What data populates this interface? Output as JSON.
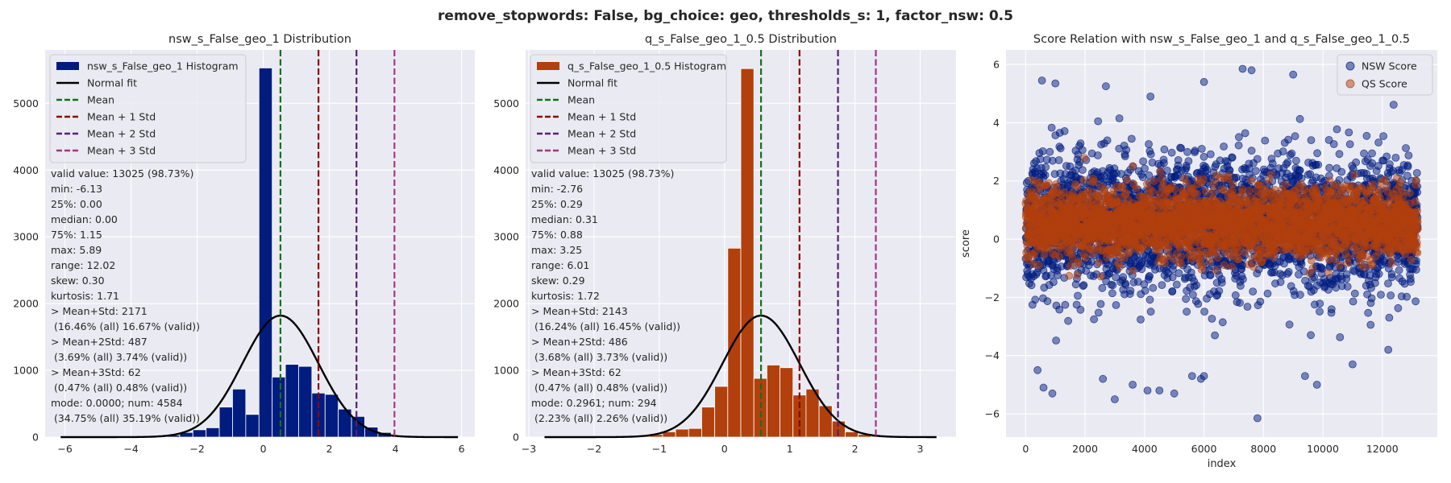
{
  "suptitle": "remove_stopwords: False, bg_choice: geo, thresholds_s: 1, factor_nsw: 0.5",
  "colors": {
    "nsw": "#001c7f",
    "qs": "#b1400d",
    "normal_fit": "#000000",
    "mean": "#12711c",
    "mean_1std": "#8c0800",
    "mean_2std": "#591e71",
    "mean_3std": "#a23582",
    "panel_bg": "#eaeaf2",
    "grid": "#ffffff"
  },
  "chart_data": [
    {
      "type": "bar",
      "subtype": "histogram",
      "title": "nsw_s_False_geo_1 Distribution",
      "xlabel": "",
      "ylabel": "",
      "xlim": [
        -6.6,
        6.4
      ],
      "ylim": [
        0,
        5800
      ],
      "xticks": [
        -6,
        -4,
        -2,
        0,
        2,
        4,
        6
      ],
      "yticks": [
        0,
        1000,
        2000,
        3000,
        4000,
        5000
      ],
      "bin_edges": [
        -6.13,
        -5.73,
        -5.33,
        -4.93,
        -4.53,
        -4.13,
        -3.73,
        -3.33,
        -2.93,
        -2.53,
        -2.13,
        -1.73,
        -1.33,
        -0.93,
        -0.53,
        -0.13,
        0.27,
        0.67,
        1.07,
        1.47,
        1.87,
        2.27,
        2.67,
        3.07,
        3.47,
        3.87,
        4.27,
        4.67,
        5.07,
        5.47,
        5.89
      ],
      "counts": [
        2,
        2,
        3,
        4,
        6,
        8,
        10,
        15,
        30,
        70,
        110,
        140,
        450,
        720,
        340,
        5530,
        900,
        1090,
        1060,
        660,
        640,
        420,
        310,
        150,
        70,
        30,
        12,
        6,
        3,
        2
      ],
      "normal_fit": {
        "mean": 0.52,
        "std": 1.15,
        "peak": 1820
      },
      "vlines": [
        {
          "label": "Mean",
          "x": 0.52,
          "color_key": "mean"
        },
        {
          "label": "Mean + 1 Std",
          "x": 1.67,
          "color_key": "mean_1std"
        },
        {
          "label": "Mean + 2 Std",
          "x": 2.82,
          "color_key": "mean_2std"
        },
        {
          "label": "Mean + 3 Std",
          "x": 3.97,
          "color_key": "mean_3std"
        }
      ],
      "legend": {
        "position": "upper left",
        "entries": [
          {
            "kind": "patch",
            "label": "nsw_s_False_geo_1 Histogram",
            "color_key": "nsw"
          },
          {
            "kind": "line",
            "label": "Normal fit",
            "color_key": "normal_fit"
          },
          {
            "kind": "dash",
            "label": "Mean",
            "color_key": "mean"
          },
          {
            "kind": "dash",
            "label": "Mean + 1 Std",
            "color_key": "mean_1std"
          },
          {
            "kind": "dash",
            "label": "Mean + 2 Std",
            "color_key": "mean_2std"
          },
          {
            "kind": "dash",
            "label": "Mean + 3 Std",
            "color_key": "mean_3std"
          }
        ]
      },
      "stats_text": [
        "valid value: 13025 (98.73%)",
        "min: -6.13",
        "25%: 0.00",
        "median: 0.00",
        "75%: 1.15",
        "max: 5.89",
        "range: 12.02",
        "skew: 0.30",
        "kurtosis: 1.71",
        "> Mean+Std: 2171",
        " (16.46% (all) 16.67% (valid))",
        "> Mean+2Std: 487",
        " (3.69% (all) 3.74% (valid))",
        "> Mean+3Std: 62",
        " (0.47% (all) 0.48% (valid))",
        "mode: 0.0000; num: 4584",
        " (34.75% (all) 35.19% (valid))"
      ]
    },
    {
      "type": "bar",
      "subtype": "histogram",
      "title": "q_s_False_geo_1_0.5 Distribution",
      "xlabel": "",
      "ylabel": "",
      "xlim": [
        -3.05,
        3.55
      ],
      "ylim": [
        0,
        5800
      ],
      "xticks": [
        -3,
        -2,
        -1,
        0,
        1,
        2,
        3
      ],
      "yticks": [
        0,
        1000,
        2000,
        3000,
        4000,
        5000
      ],
      "bin_edges": [
        -2.76,
        -2.56,
        -2.36,
        -2.16,
        -1.96,
        -1.75,
        -1.55,
        -1.35,
        -1.15,
        -0.95,
        -0.75,
        -0.55,
        -0.35,
        -0.15,
        0.05,
        0.25,
        0.45,
        0.65,
        0.85,
        1.05,
        1.25,
        1.45,
        1.65,
        1.85,
        2.05,
        2.25,
        2.45,
        2.65,
        2.85,
        3.05,
        3.25
      ],
      "counts": [
        2,
        2,
        3,
        4,
        6,
        8,
        12,
        18,
        40,
        80,
        120,
        130,
        450,
        760,
        2830,
        5520,
        880,
        1080,
        1040,
        630,
        720,
        470,
        240,
        80,
        40,
        15,
        8,
        4,
        2,
        2
      ],
      "normal_fit": {
        "mean": 0.56,
        "std": 0.59,
        "peak": 1820
      },
      "vlines": [
        {
          "label": "Mean",
          "x": 0.56,
          "color_key": "mean"
        },
        {
          "label": "Mean + 1 Std",
          "x": 1.15,
          "color_key": "mean_1std"
        },
        {
          "label": "Mean + 2 Std",
          "x": 1.74,
          "color_key": "mean_2std"
        },
        {
          "label": "Mean + 3 Std",
          "x": 2.32,
          "color_key": "mean_3std"
        }
      ],
      "legend": {
        "position": "upper left",
        "entries": [
          {
            "kind": "patch",
            "label": "q_s_False_geo_1_0.5 Histogram",
            "color_key": "qs"
          },
          {
            "kind": "line",
            "label": "Normal fit",
            "color_key": "normal_fit"
          },
          {
            "kind": "dash",
            "label": "Mean",
            "color_key": "mean"
          },
          {
            "kind": "dash",
            "label": "Mean + 1 Std",
            "color_key": "mean_1std"
          },
          {
            "kind": "dash",
            "label": "Mean + 2 Std",
            "color_key": "mean_2std"
          },
          {
            "kind": "dash",
            "label": "Mean + 3 Std",
            "color_key": "mean_3std"
          }
        ]
      },
      "stats_text": [
        "valid value: 13025 (98.73%)",
        "min: -2.76",
        "25%: 0.29",
        "median: 0.31",
        "75%: 0.88",
        "max: 3.25",
        "range: 6.01",
        "skew: 0.29",
        "kurtosis: 1.72",
        "> Mean+Std: 2143",
        " (16.24% (all) 16.45% (valid))",
        "> Mean+2Std: 486",
        " (3.68% (all) 3.73% (valid))",
        "> Mean+3Std: 62",
        " (0.47% (all) 0.48% (valid))",
        "mode: 0.2961; num: 294",
        " (2.23% (all) 2.26% (valid))"
      ]
    },
    {
      "type": "scatter",
      "title": "Score Relation with nsw_s_False_geo_1 and q_s_False_geo_1_0.5",
      "xlabel": "index",
      "ylabel": "score",
      "xlim": [
        -660,
        13850
      ],
      "ylim": [
        -6.8,
        6.5
      ],
      "xticks": [
        0,
        2000,
        4000,
        6000,
        8000,
        10000,
        12000
      ],
      "yticks": [
        -6,
        -4,
        -2,
        0,
        2,
        4,
        6
      ],
      "n_points": 13192,
      "series": [
        {
          "name": "NSW Score",
          "color_key": "nsw",
          "mean": 0.52,
          "std": 1.15,
          "outliers": [
            [
              550,
              5.45
            ],
            [
              1000,
              5.35
            ],
            [
              2700,
              5.25
            ],
            [
              6000,
              5.4
            ],
            [
              7300,
              5.85
            ],
            [
              7600,
              5.8
            ],
            [
              9000,
              5.65
            ],
            [
              4200,
              4.9
            ],
            [
              400,
              -4.5
            ],
            [
              600,
              -5.1
            ],
            [
              900,
              -5.3
            ],
            [
              2600,
              -4.8
            ],
            [
              3000,
              -5.5
            ],
            [
              3600,
              -5.0
            ],
            [
              4100,
              -5.2
            ],
            [
              4500,
              -5.2
            ],
            [
              5000,
              -5.3
            ],
            [
              5600,
              -4.7
            ],
            [
              5900,
              -4.8
            ],
            [
              6000,
              -4.7
            ],
            [
              7800,
              -6.15
            ],
            [
              9400,
              -4.7
            ],
            [
              9800,
              -5.0
            ],
            [
              11000,
              -4.3
            ],
            [
              12200,
              -3.8
            ]
          ]
        },
        {
          "name": "QS Score",
          "color_key": "qs",
          "mean": 0.56,
          "std": 0.59
        }
      ],
      "legend": {
        "position": "upper right"
      }
    }
  ]
}
